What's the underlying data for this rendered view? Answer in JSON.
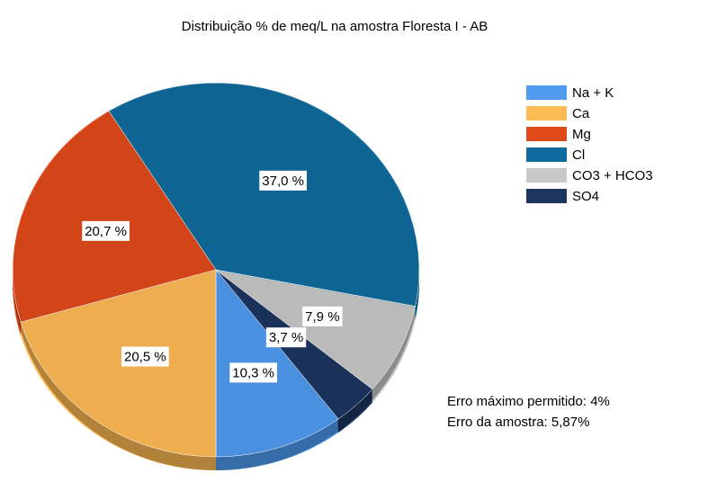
{
  "chart_data": {
    "type": "pie",
    "title": "Distribuição % de meq/L na amostra  Floresta I - AB",
    "categories": [
      "Na + K",
      "SO4",
      "CO3 + HCO3",
      "Cl",
      "Mg",
      "Ca"
    ],
    "values": [
      10.3,
      3.7,
      7.9,
      37.0,
      20.7,
      20.5
    ],
    "value_labels": [
      "10,3 %",
      "3,7 %",
      "7,9 %",
      "37,0 %",
      "20,7 %",
      "20,5 %"
    ],
    "colors": [
      "#4e9bf0",
      "#1c3660",
      "#c8c8c8",
      "#0f6b9e",
      "#e04a1a",
      "#ffbb55"
    ],
    "legend_order": [
      "Na + K",
      "Ca",
      "Mg",
      "Cl",
      "CO3 + HCO3",
      "SO4"
    ],
    "annotations": [
      "Erro máximo permitido: 4%",
      "Erro da amostra: 5,87%"
    ]
  }
}
